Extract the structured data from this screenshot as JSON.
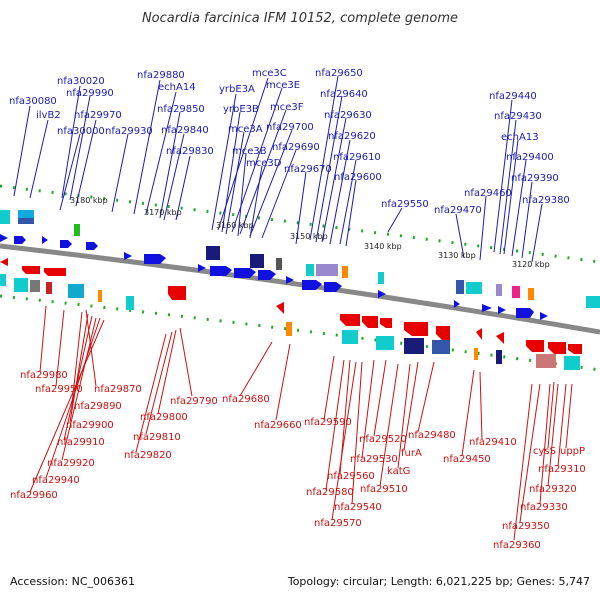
{
  "title": "Nocardia farcinica IFM 10152, complete genome",
  "footer": {
    "accession": "Accession: NC_006361",
    "stats": "Topology: circular; Length: 6,021,225 bp; Genes: 5,747"
  },
  "colors": {
    "forward": "#1010e0",
    "reverse": "#e80000",
    "leader_blue": "#1c1cb0",
    "leader_red": "#cc1111",
    "backbone": "#888888",
    "tick": "#22aa22"
  },
  "kbp_ticks": [
    "3180 kbp",
    "3170 kbp",
    "3160 kbp",
    "3150 kbp",
    "3140 kbp",
    "3130 kbp",
    "3120 kbp"
  ],
  "forward_labels": [
    "nfa30020",
    "nfa29990",
    "nfa30080",
    "ilvB2",
    "nfa29970",
    "nfa30000",
    "nfa29930",
    "nfa29880",
    "echA14",
    "nfa29850",
    "nfa29840",
    "nfa29830",
    "mce3C",
    "mce3E",
    "yrbE3A",
    "yrbE3B",
    "mce3F",
    "mce3A",
    "nfa29700",
    "mce3B",
    "nfa29690",
    "mce3D",
    "nfa29650",
    "nfa29640",
    "nfa29630",
    "nfa29620",
    "nfa29610",
    "nfa29670",
    "nfa29600",
    "nfa29550",
    "nfa29440",
    "nfa29430",
    "echA13",
    "nfa29400",
    "nfa29390",
    "nfa29460",
    "nfa29470",
    "nfa29380"
  ],
  "reverse_labels": [
    "nfa29980",
    "nfa29950",
    "nfa29870",
    "nfa29890",
    "nfa29900",
    "nfa29910",
    "nfa29920",
    "nfa29940",
    "nfa29960",
    "nfa29790",
    "nfa29800",
    "nfa29810",
    "nfa29820",
    "nfa29680",
    "nfa29660",
    "nfa29590",
    "nfa29520",
    "nfa29480",
    "furA",
    "nfa29560",
    "nfa29530",
    "katG",
    "nfa29580",
    "nfa29510",
    "nfa29540",
    "nfa29570",
    "nfa29410",
    "nfa29450",
    "cysS",
    "uppP",
    "nfa29310",
    "nfa29320",
    "nfa29330",
    "nfa29350",
    "nfa29360"
  ]
}
